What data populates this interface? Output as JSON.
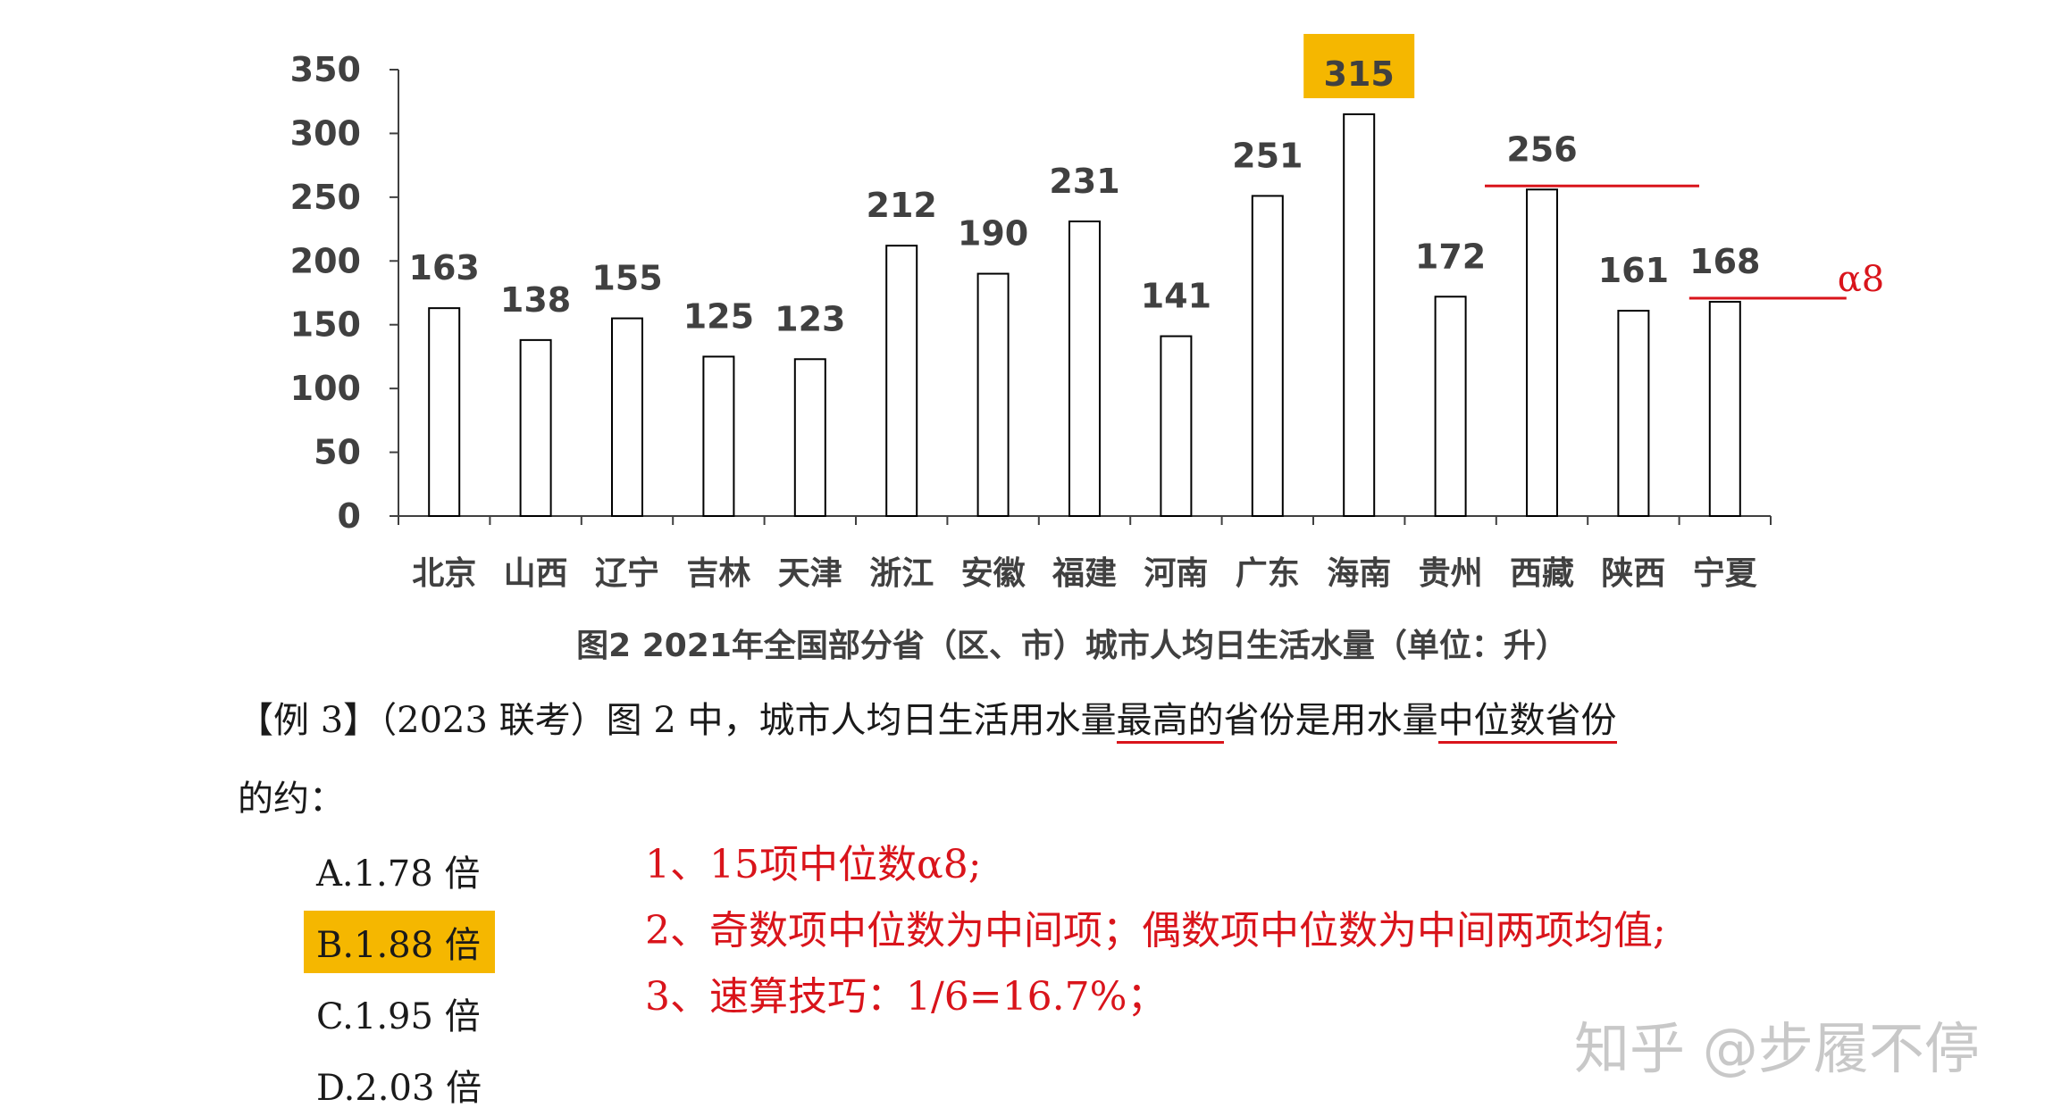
{
  "chart_data": {
    "type": "bar",
    "categories": [
      "北京",
      "山西",
      "辽宁",
      "吉林",
      "天津",
      "浙江",
      "安徽",
      "福建",
      "河南",
      "广东",
      "海南",
      "贵州",
      "西藏",
      "陕西",
      "宁夏"
    ],
    "values": [
      163,
      138,
      155,
      125,
      123,
      212,
      190,
      231,
      141,
      251,
      315,
      172,
      256,
      161,
      168
    ],
    "caption": "图2  2021年全国部分省（区、市）城市人均日生活水量（单位：升）",
    "yticks": [
      "0",
      "50",
      "100",
      "150",
      "200",
      "250",
      "300",
      "350"
    ],
    "ylim": [
      0,
      350
    ],
    "highlighted_category": "海南",
    "highlight_color": "#f5b700",
    "annotation_color": "#d9141b",
    "annotations": [
      {
        "type": "hline",
        "category": "西藏",
        "value": 256
      },
      {
        "type": "hline",
        "category": "宁夏",
        "value": 168,
        "text": "α8"
      }
    ]
  },
  "question": {
    "prefix": "【例 3】（2023 联考）图 2 中，城市人均日生活用水量",
    "u1": "最高的",
    "middle": "省份是用水量",
    "u2": "中位数省份",
    "line2": "的约："
  },
  "options": [
    {
      "label": "A.1.78 倍",
      "highlighted": false
    },
    {
      "label": "B.1.88 倍",
      "highlighted": true
    },
    {
      "label": "C.1.95 倍",
      "highlighted": false
    },
    {
      "label": "D.2.03 倍",
      "highlighted": false
    }
  ],
  "notes": [
    "1、15项中位数α8;",
    "2、奇数项中位数为中间项；偶数项中位数为中间两项均值;",
    "3、速算技巧：1/6=16.7%；"
  ],
  "watermark": "知乎 @步履不停"
}
